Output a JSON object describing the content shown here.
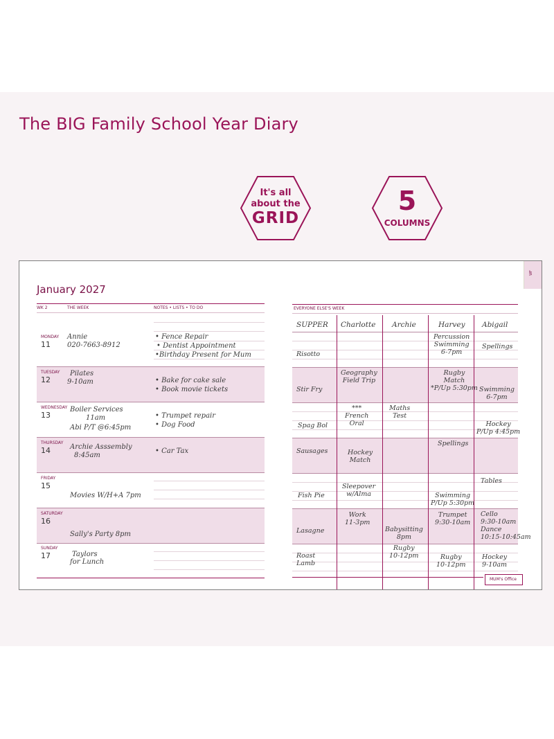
{
  "title": "The BIG Family School Year Diary",
  "badges": {
    "grid": {
      "line1": "It's all",
      "line2": "about the",
      "line3": "GRID"
    },
    "columns": {
      "number": "5",
      "label": "COLUMNS"
    }
  },
  "diary": {
    "tab_label": "WF",
    "month": "January 2027",
    "left_headers": {
      "week": "WK 2",
      "the_week": "THE WEEK",
      "notes": "NOTES • LISTS • TO DO"
    },
    "days": [
      {
        "name": "MONDAY",
        "num": "11",
        "entries": [
          "Annie",
          "020-7663-8912"
        ],
        "notes": [
          "• Fence Repair",
          "• Dentist Appointment",
          "•Birthday Present for Mum"
        ]
      },
      {
        "name": "TUESDAY",
        "num": "12",
        "entries": [
          "Pilates",
          "9-10am"
        ],
        "notes": [
          "• Bake for cake sale",
          "• Book movie tickets"
        ]
      },
      {
        "name": "WEDNESDAY",
        "num": "13",
        "entries": [
          "Boiler Services",
          "11am",
          "Abi P/T @6:45pm"
        ],
        "notes": [
          "• Trumpet repair",
          "•  Dog Food"
        ]
      },
      {
        "name": "THURSDAY",
        "num": "14",
        "entries": [
          "Archie Asssembly",
          "8:45am"
        ],
        "notes": [
          "• Car Tax"
        ]
      },
      {
        "name": "FRIDAY",
        "num": "15",
        "entries": [
          "Movies W/H+A 7pm"
        ],
        "notes": []
      },
      {
        "name": "SATURDAY",
        "num": "16",
        "entries": [
          "Sally's Party 8pm"
        ],
        "notes": []
      },
      {
        "name": "SUNDAY",
        "num": "17",
        "entries": [
          "Taylors",
          "for Lunch"
        ],
        "notes": []
      }
    ],
    "right_header": "EVERYONE ELSE'S WEEK",
    "columns": [
      "SUPPER",
      "Charlotte",
      "Archie",
      "Harvey",
      "Abigail"
    ],
    "rows": [
      {
        "supper": "Risotto",
        "charlotte": "",
        "archie": "",
        "harvey": "Percussion\nSwimming\n6-7pm",
        "abigail": "Spellings"
      },
      {
        "supper": "Stir Fry",
        "charlotte": "Geography\nField Trip",
        "archie": "",
        "harvey": "Rugby\nMatch\n*P/Up 5:30pm",
        "abigail": "Swimming\n6-7pm"
      },
      {
        "supper": "Spag Bol",
        "charlotte": "***\nFrench\nOral",
        "archie": "Maths\nTest",
        "harvey": "",
        "abigail": "Hockey\nP/Up 4:45pm"
      },
      {
        "supper": "Sausages",
        "charlotte": "Hockey\nMatch",
        "archie": "",
        "harvey": "Spellings",
        "abigail": ""
      },
      {
        "supper": "Fish Pie",
        "charlotte": "Sleepover\nw/Alma",
        "archie": "",
        "harvey": "Swimming\nP/Up 5:30pm",
        "abigail": "Tables"
      },
      {
        "supper": "Lasagne",
        "charlotte": "Work\n11-3pm",
        "archie": "Babysitting\n8pm",
        "harvey": "Trumpet\n9:30-10am",
        "abigail": "Cello\n9:30-10am\nDance\n10:15-10:45am"
      },
      {
        "supper": "Roast\nLamb",
        "charlotte": "",
        "archie": "Rugby\n10-12pm",
        "harvey": "Rugby\n10-12pm",
        "abigail": "Hockey\n9-10am"
      }
    ],
    "flag": "MUM's Office"
  }
}
